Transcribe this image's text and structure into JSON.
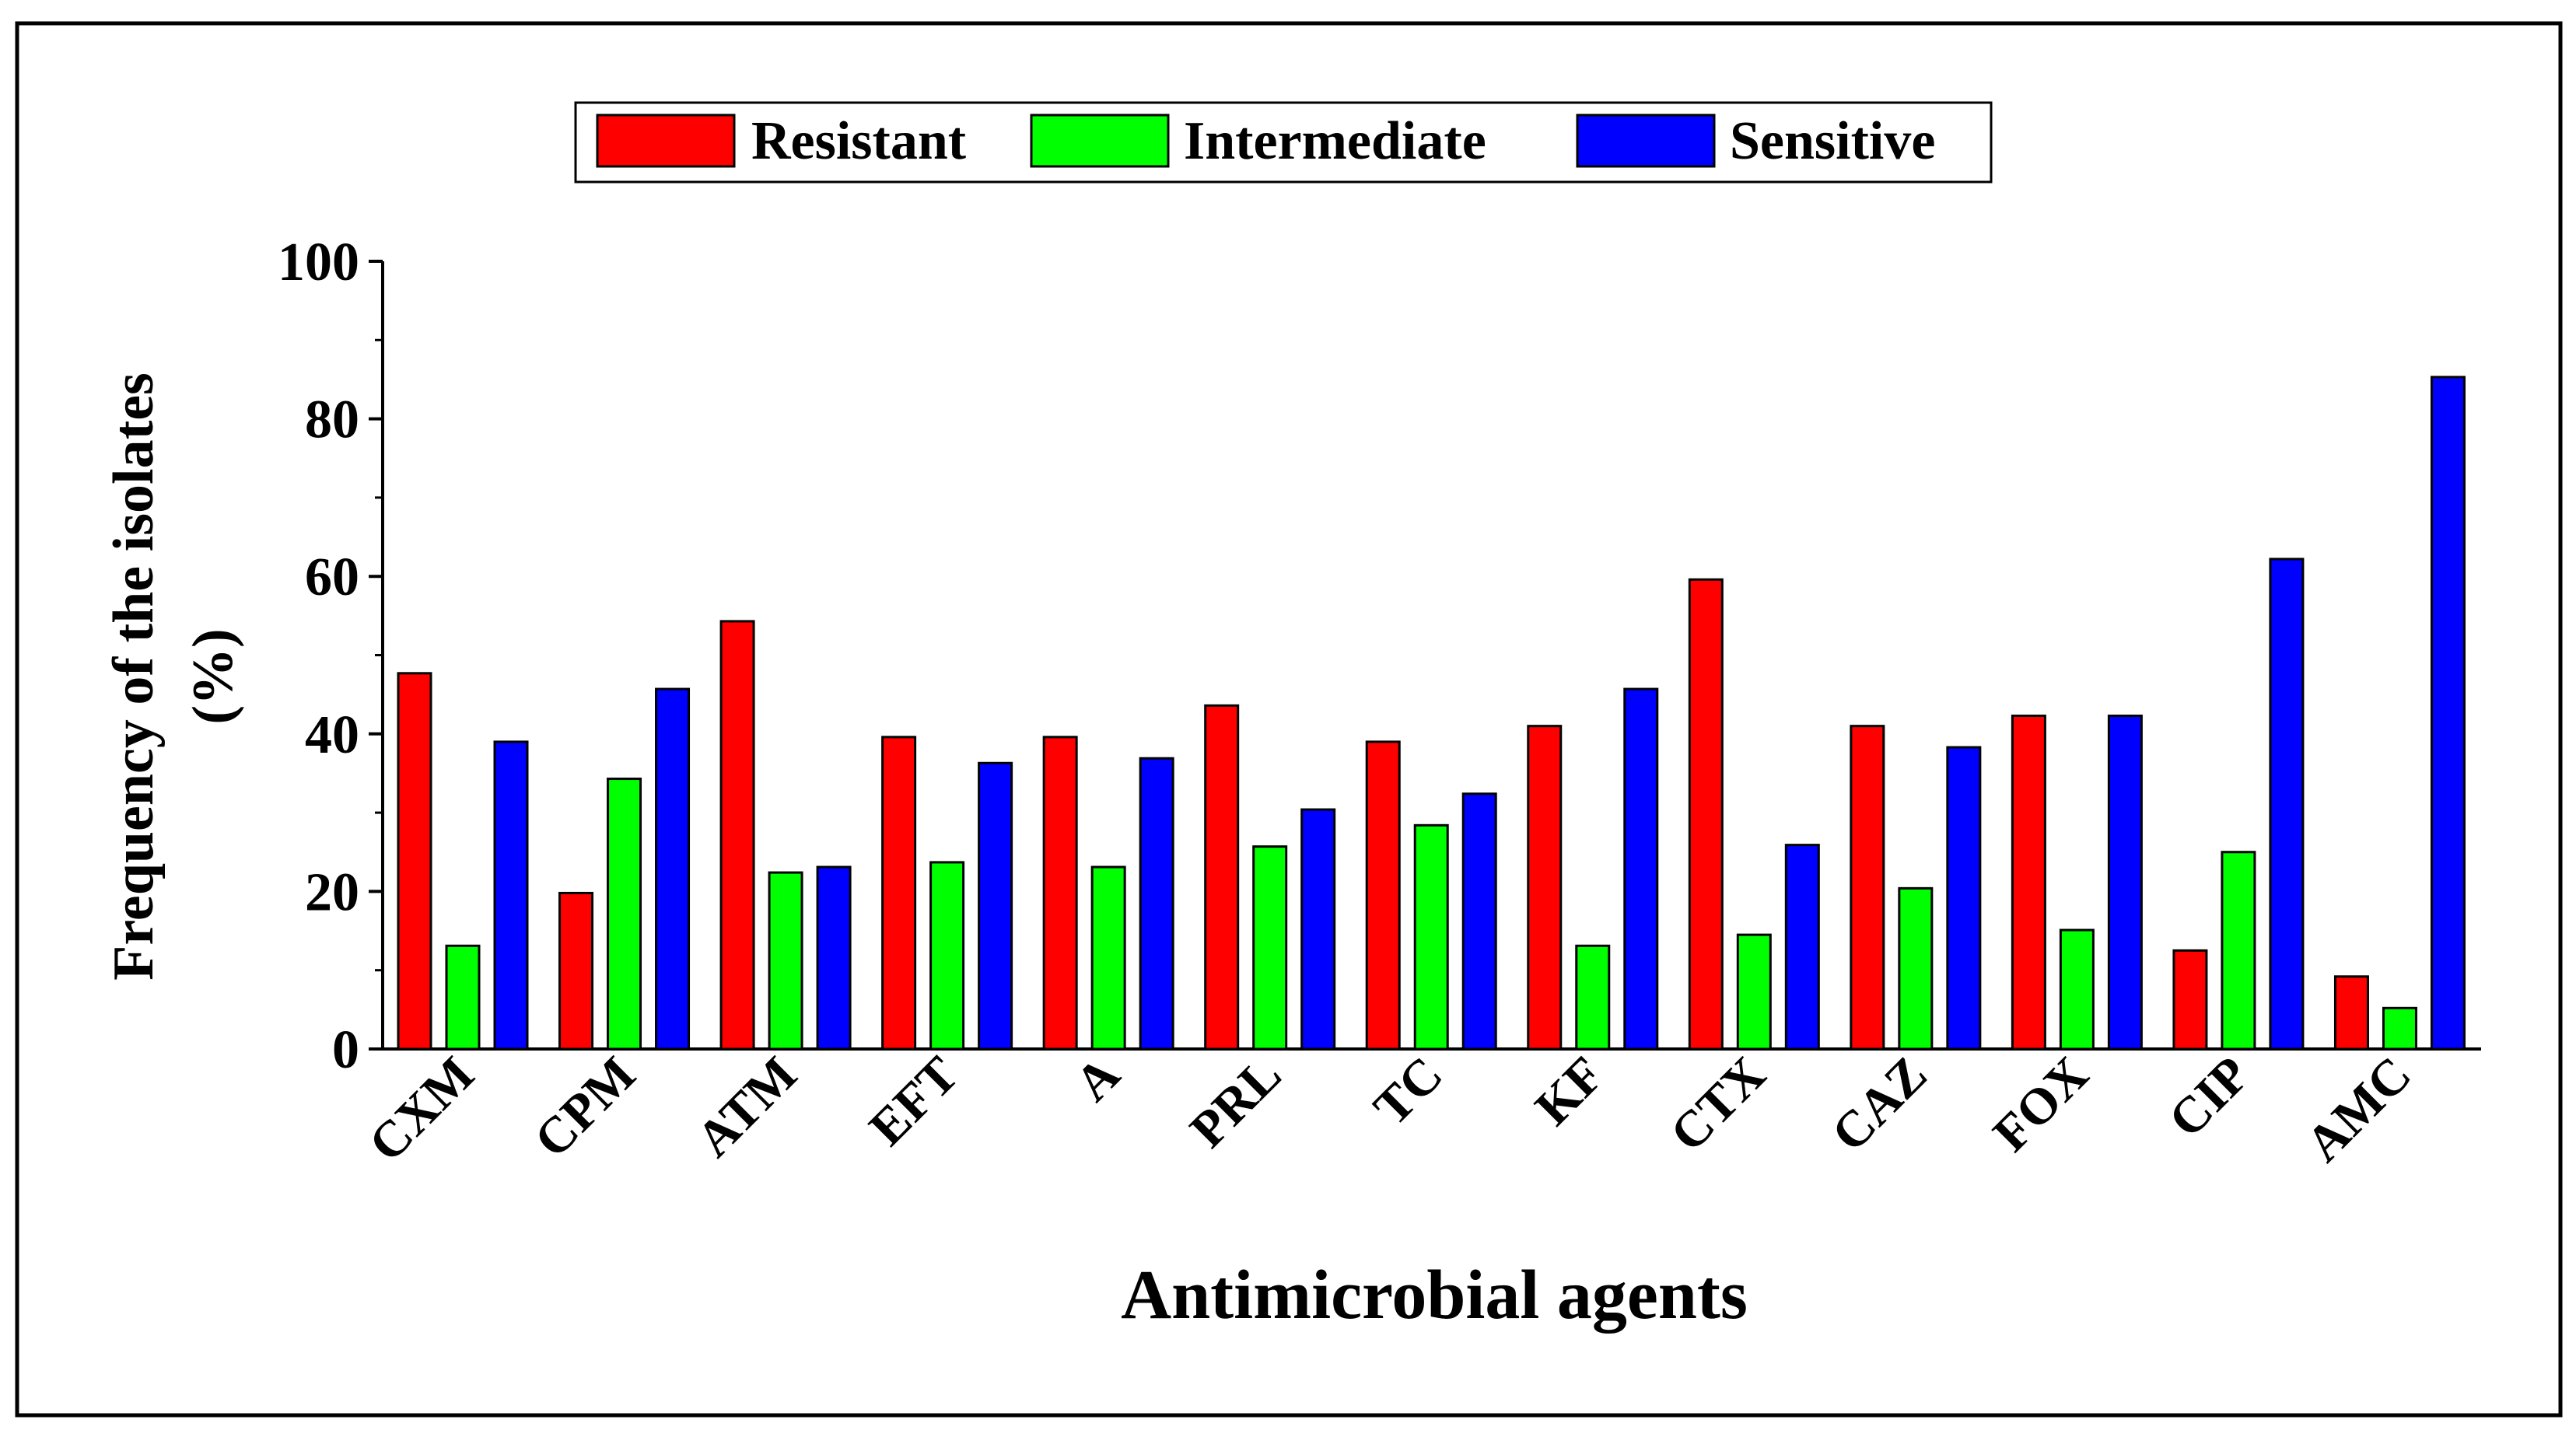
{
  "chart_data": {
    "type": "bar",
    "title": "",
    "xlabel": "Antimicrobial agents",
    "ylabel_lines": [
      "Frequency of the isolates",
      "(%)"
    ],
    "ylim": [
      0,
      100
    ],
    "yticks": [
      0,
      20,
      40,
      60,
      80,
      100
    ],
    "grid": false,
    "legend_position": "top-center",
    "categories": [
      "CXM",
      "CPM",
      "ATM",
      "EFT",
      "A",
      "PRL",
      "TC",
      "KF",
      "CTX",
      "CAZ",
      "FOX",
      "CIP",
      "AMC"
    ],
    "series": [
      {
        "name": "Resistant",
        "color": "#ff0000",
        "values": [
          47.7,
          19.8,
          54.3,
          39.6,
          39.6,
          43.6,
          39.0,
          41.0,
          59.6,
          41.0,
          42.3,
          12.5,
          9.2
        ]
      },
      {
        "name": "Intermediate",
        "color": "#00ff00",
        "values": [
          13.1,
          34.3,
          22.4,
          23.7,
          23.1,
          25.7,
          28.4,
          13.1,
          14.5,
          20.4,
          15.1,
          25.0,
          5.2
        ]
      },
      {
        "name": "Sensitive",
        "color": "#0000ff",
        "values": [
          39.0,
          45.7,
          23.1,
          36.3,
          36.9,
          30.4,
          32.4,
          45.7,
          25.9,
          38.3,
          42.3,
          62.2,
          85.3
        ]
      }
    ]
  }
}
